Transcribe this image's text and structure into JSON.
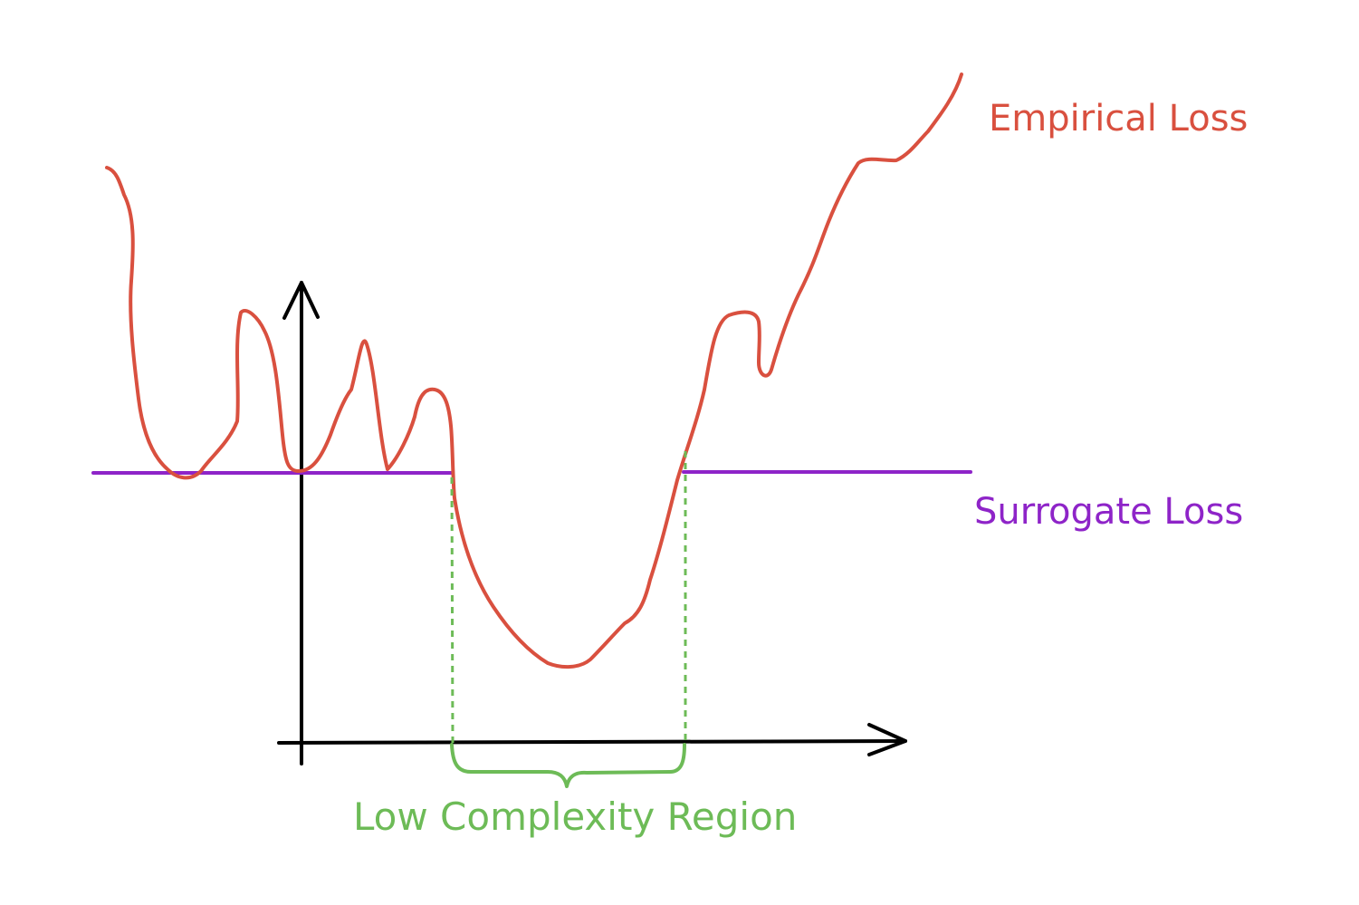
{
  "labels": {
    "empirical": "Empirical Loss",
    "surrogate": "Surrogate Loss",
    "region": "Low Complexity Region"
  },
  "colors": {
    "empirical": "#d9503f",
    "surrogate": "#8e24c8",
    "region": "#6dbb57",
    "axis": "#000000"
  }
}
